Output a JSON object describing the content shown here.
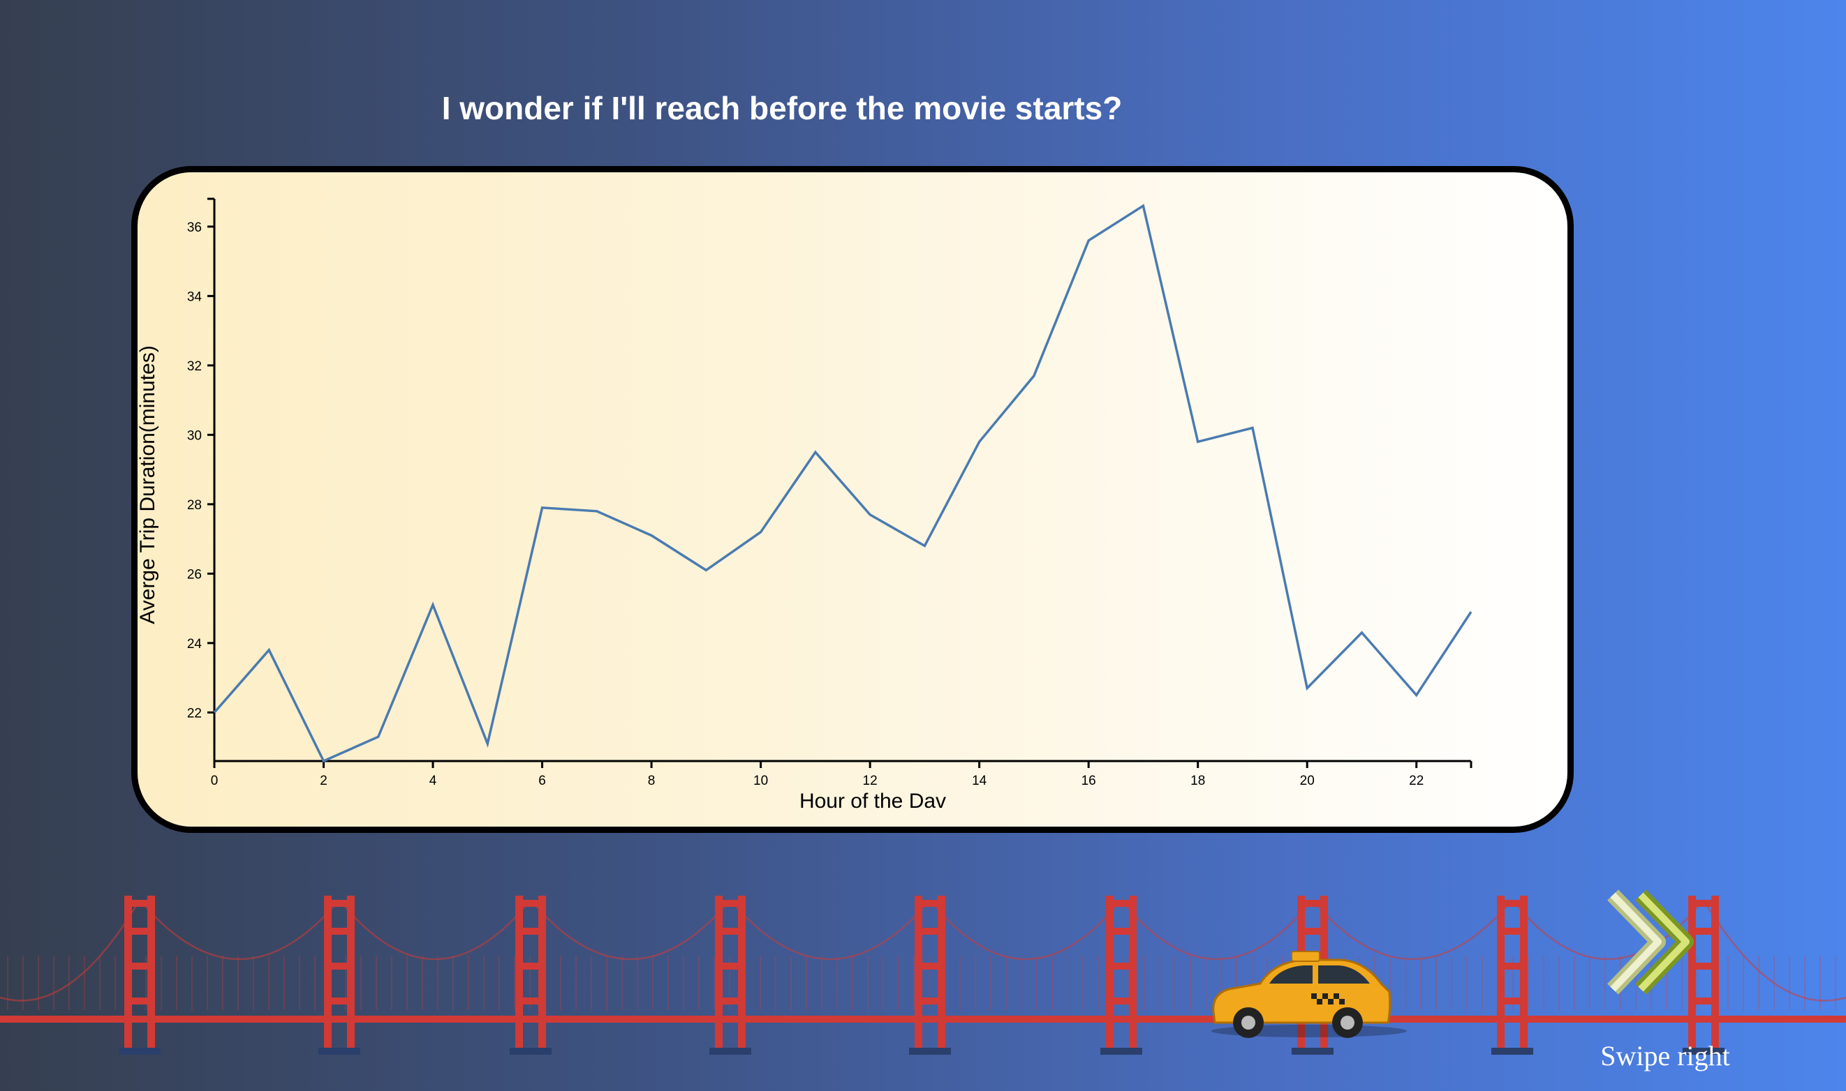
{
  "headline": "I wonder if I'll reach before the movie starts?",
  "swipe": {
    "label": "Swipe right",
    "icon": "double-chevron-right-icon"
  },
  "decorations": {
    "bridge": "golden-gate-bridge",
    "car": "yellow-taxi-icon"
  },
  "colors": {
    "line": "#4a7bb0",
    "bridge": "#d23a35",
    "taxi": "#f2a81c"
  },
  "chart_data": {
    "type": "line",
    "xlabel": "Hour of the Dav",
    "ylabel": "Averge Trip Duration(minutes)",
    "xlim": [
      0,
      23
    ],
    "ylim": [
      20.6,
      36.6
    ],
    "x_ticks": [
      0,
      2,
      4,
      6,
      8,
      10,
      12,
      14,
      16,
      18,
      20,
      22
    ],
    "y_ticks": [
      22,
      24,
      26,
      28,
      30,
      32,
      34,
      36
    ],
    "grid": false,
    "series": [
      {
        "x": [
          0,
          1,
          2,
          3,
          4,
          5,
          6,
          7,
          8,
          9,
          10,
          11,
          12,
          13,
          14,
          15,
          16,
          17,
          18,
          19,
          20,
          21,
          22,
          23
        ],
        "values": [
          22.0,
          23.8,
          20.6,
          21.3,
          25.1,
          21.1,
          27.9,
          27.8,
          27.1,
          26.1,
          27.2,
          29.5,
          27.7,
          26.8,
          29.8,
          31.7,
          35.6,
          36.6,
          29.8,
          30.2,
          22.7,
          24.3,
          22.5,
          24.9
        ]
      }
    ]
  }
}
